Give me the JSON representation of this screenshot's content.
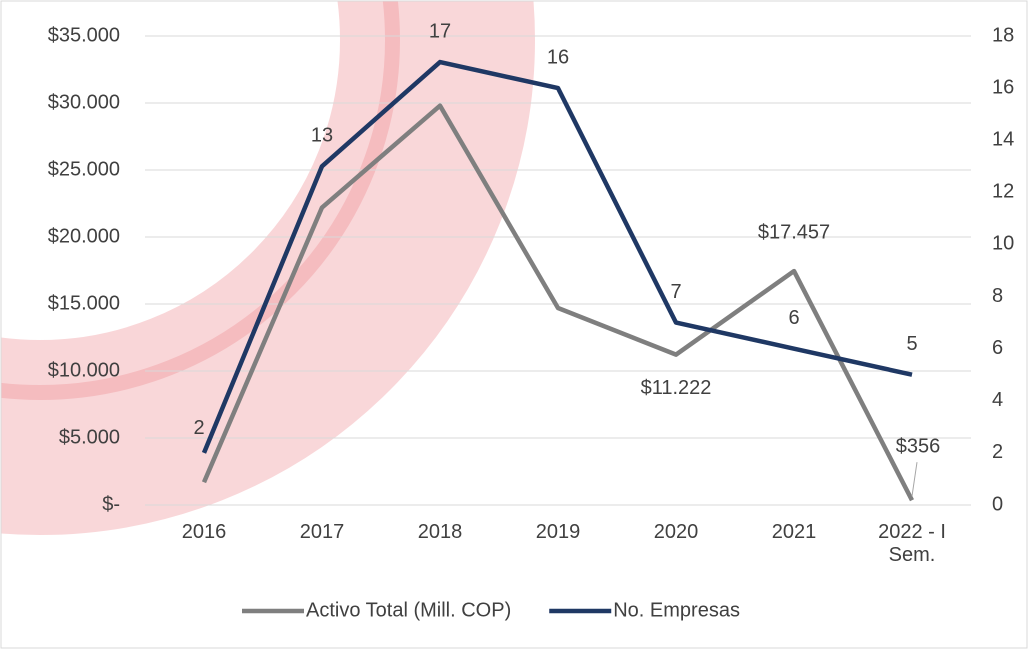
{
  "chart_data": {
    "type": "line",
    "categories": [
      "2016",
      "2017",
      "2018",
      "2019",
      "2020",
      "2021",
      "2022 - I Sem."
    ],
    "series": [
      {
        "name": "Activo Total (Mill. COP)",
        "color": "#7f7f7f",
        "values": [
          1700,
          22200,
          29800,
          14700,
          11222,
          17457,
          356
        ],
        "value_labels": [
          null,
          null,
          null,
          null,
          "$11.222",
          "$17.457",
          "$356"
        ]
      },
      {
        "name": "No. Empresas",
        "color": "#1f3864",
        "axis": "y2",
        "values": [
          2,
          13,
          17,
          16,
          7,
          6,
          5
        ]
      }
    ],
    "ylim": [
      0,
      35000
    ],
    "yticks": [
      {
        "value": 0,
        "label": "$-"
      },
      {
        "value": 5000,
        "label": "$5.000"
      },
      {
        "value": 10000,
        "label": "$10.000"
      },
      {
        "value": 15000,
        "label": "$15.000"
      },
      {
        "value": 20000,
        "label": "$20.000"
      },
      {
        "value": 25000,
        "label": "$25.000"
      },
      {
        "value": 30000,
        "label": "$30.000"
      },
      {
        "value": 35000,
        "label": "$35.000"
      }
    ],
    "y2lim": [
      0,
      18
    ],
    "y2ticks": [
      0,
      2,
      4,
      6,
      8,
      10,
      12,
      14,
      16,
      18
    ],
    "grid": true,
    "legend": "bottom"
  }
}
